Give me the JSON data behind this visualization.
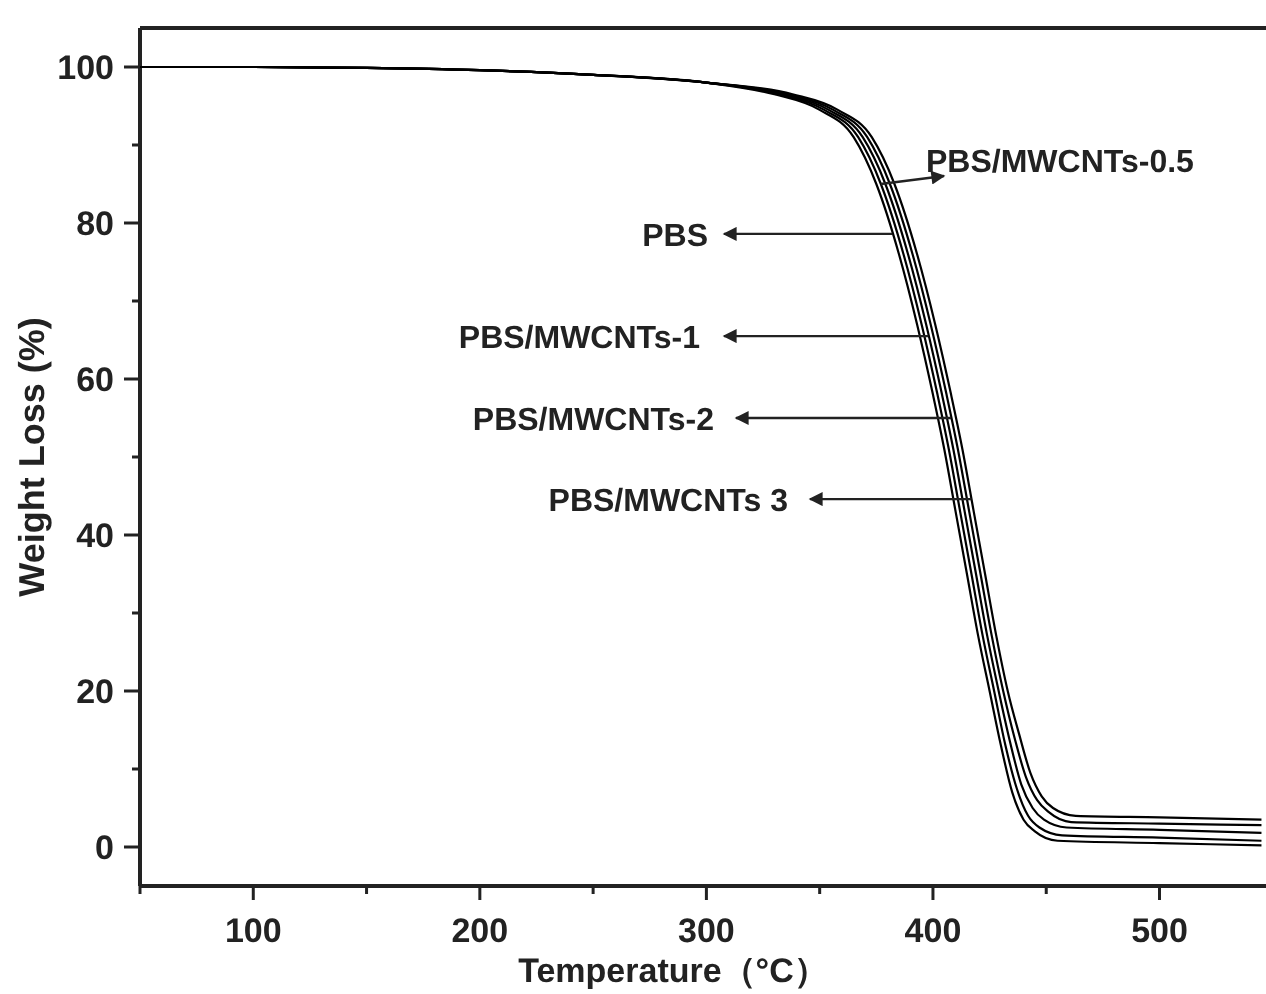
{
  "chart_data": {
    "type": "line",
    "xlabel": "Temperature（°C）",
    "ylabel": "Weight Loss (%)",
    "xlim": [
      50,
      547
    ],
    "ylim": [
      -5,
      105
    ],
    "xticks": [
      {
        "value": 50,
        "label": null
      },
      100,
      {
        "value": 150,
        "label": null
      },
      200,
      {
        "value": 250,
        "label": null
      },
      300,
      {
        "value": 350,
        "label": null
      },
      400,
      {
        "value": 450,
        "label": null
      },
      500
    ],
    "yticks": [
      0,
      {
        "value": 10,
        "label": null
      },
      20,
      {
        "value": 30,
        "label": null
      },
      40,
      {
        "value": 50,
        "label": null
      },
      60,
      {
        "value": 70,
        "label": null
      },
      80,
      {
        "value": 90,
        "label": null
      },
      100
    ],
    "annotations": [
      {
        "text": "PBS/MWCNTs-0.5",
        "x": 377,
        "y": 85
      },
      {
        "text": "PBS",
        "x": 382,
        "y": 78.6
      },
      {
        "text": "PBS/MWCNTs-1",
        "x": 398,
        "y": 65.5
      },
      {
        "text": "PBS/MWCNTs-2",
        "x": 408,
        "y": 55
      },
      {
        "text": "PBS/MWCNTs 3",
        "x": 417,
        "y": 44.6
      }
    ],
    "grid": false,
    "legend": false,
    "marker": "none",
    "line_style": "solid",
    "series": [
      {
        "color": "#000000",
        "x": [
          50,
          100,
          150,
          200,
          250,
          300,
          330,
          350,
          365,
          375,
          385,
          393,
          400,
          405,
          410,
          415,
          420,
          425,
          430,
          435,
          440,
          445,
          455,
          500,
          545
        ],
        "values": [
          100,
          100,
          99.9,
          99.6,
          99,
          98,
          96.5,
          94.5,
          91,
          85,
          76,
          67,
          58,
          51,
          43,
          35,
          27,
          20,
          13,
          7,
          3.5,
          2,
          0.8,
          0.5,
          0.2
        ]
      },
      {
        "color": "#000000",
        "x": [
          50,
          100,
          150,
          200,
          250,
          300,
          332,
          352,
          367,
          377,
          387,
          395,
          402,
          407,
          412,
          417,
          422,
          427,
          432,
          437,
          442,
          447,
          457,
          500,
          545
        ],
        "values": [
          100,
          100,
          99.9,
          99.6,
          99,
          98,
          96.5,
          94.5,
          91,
          85,
          76,
          67,
          58,
          51,
          43,
          35,
          27,
          20,
          13,
          7.5,
          4,
          2.5,
          1.5,
          1.2,
          0.8
        ]
      },
      {
        "color": "#000000",
        "x": [
          50,
          100,
          150,
          200,
          250,
          300,
          334,
          354,
          369,
          379,
          389,
          397,
          404,
          409,
          414,
          419,
          424,
          429,
          434,
          439,
          444,
          449,
          459,
          500,
          545
        ],
        "values": [
          100,
          100,
          99.9,
          99.6,
          99,
          98,
          96.5,
          94.5,
          91,
          85,
          76,
          67,
          58,
          51,
          43,
          35,
          27,
          20,
          13.5,
          8,
          5,
          3.5,
          2.5,
          2.2,
          1.8
        ]
      },
      {
        "color": "#000000",
        "x": [
          50,
          100,
          150,
          200,
          250,
          300,
          336,
          356,
          371,
          381,
          391,
          399,
          406,
          411,
          416,
          421,
          426,
          431,
          436,
          441,
          446,
          451,
          461,
          500,
          545
        ],
        "values": [
          100,
          100,
          99.9,
          99.6,
          99,
          98,
          96.5,
          94.5,
          91,
          85,
          76,
          67,
          58,
          51,
          43,
          35,
          27,
          20,
          14,
          9,
          6,
          4.5,
          3.2,
          3,
          2.8
        ]
      },
      {
        "color": "#000000",
        "x": [
          50,
          100,
          150,
          200,
          250,
          300,
          338,
          358,
          373,
          383,
          393,
          401,
          408,
          413,
          418,
          423,
          428,
          433,
          438,
          443,
          448,
          453,
          463,
          500,
          545
        ],
        "values": [
          100,
          100,
          99.9,
          99.6,
          99,
          98,
          96.5,
          94.5,
          91,
          85,
          76,
          67,
          58,
          51,
          43,
          35,
          27,
          20,
          14.5,
          9.5,
          6.5,
          5,
          4,
          3.8,
          3.5
        ]
      }
    ]
  }
}
